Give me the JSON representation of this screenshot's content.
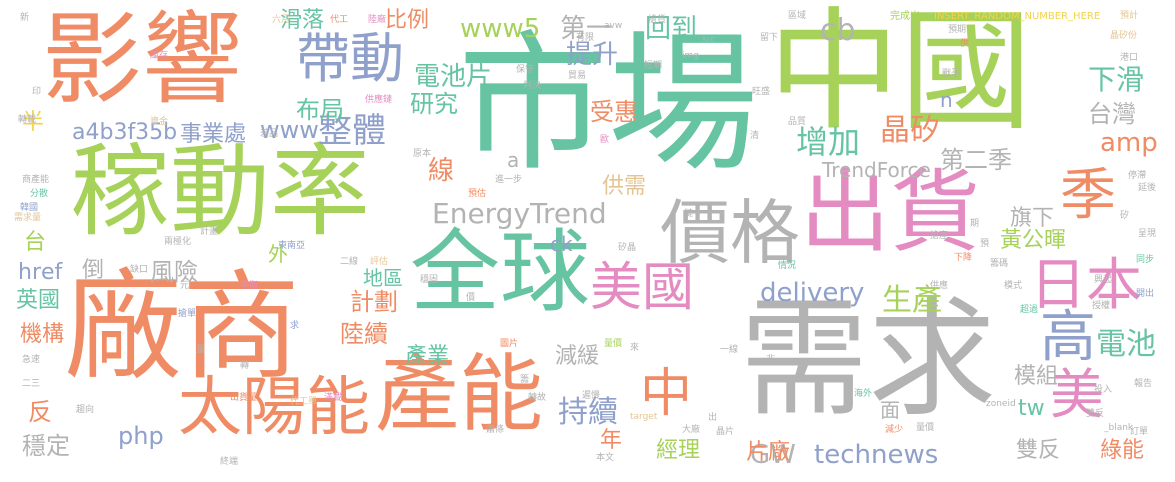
{
  "palette": {
    "orange": "#f08c65",
    "green": "#a6d25a",
    "teal": "#66c4a3",
    "gray": "#b3b3b3",
    "blue": "#8fa0cb",
    "pink": "#e48bc2",
    "yellow": "#f1d449",
    "tan": "#e3c593"
  },
  "words": [
    {
      "text": "市場",
      "color": "teal"
    },
    {
      "text": "中國",
      "color": "green"
    },
    {
      "text": "需求",
      "color": "gray"
    },
    {
      "text": "廠商",
      "color": "orange"
    },
    {
      "text": "影響",
      "color": "orange"
    },
    {
      "text": "稼動率",
      "color": "green"
    },
    {
      "text": "出貨",
      "color": "pink"
    },
    {
      "text": "全球",
      "color": "teal"
    },
    {
      "text": "產能",
      "color": "orange"
    },
    {
      "text": "價格",
      "color": "gray"
    },
    {
      "text": "太陽能",
      "color": "orange"
    },
    {
      "text": "帶動",
      "color": "blue"
    },
    {
      "text": "日本",
      "color": "pink"
    },
    {
      "text": "季",
      "color": "orange"
    },
    {
      "text": "美國",
      "color": "pink"
    },
    {
      "text": "高",
      "color": "blue"
    },
    {
      "text": "美",
      "color": "pink"
    },
    {
      "text": "中",
      "color": "orange"
    },
    {
      "text": "EnergyTrend",
      "color": "gray"
    },
    {
      "text": "delivery",
      "color": "blue"
    },
    {
      "text": "整體",
      "color": "blue"
    },
    {
      "text": "電池片",
      "color": "teal"
    },
    {
      "text": "持續",
      "color": "blue"
    },
    {
      "text": "technews",
      "color": "blue"
    },
    {
      "text": "生產",
      "color": "green"
    },
    {
      "text": "電池",
      "color": "teal"
    },
    {
      "text": "布局",
      "color": "teal"
    },
    {
      "text": "晶矽",
      "color": "orange"
    },
    {
      "text": "增加",
      "color": "teal"
    },
    {
      "text": "提升",
      "color": "blue"
    },
    {
      "text": "回到",
      "color": "teal"
    },
    {
      "text": "第一",
      "color": "gray"
    },
    {
      "text": "www5",
      "color": "green"
    },
    {
      "text": "cb",
      "color": "gray"
    },
    {
      "text": "比例",
      "color": "orange"
    },
    {
      "text": "滑落",
      "color": "teal"
    },
    {
      "text": "下滑",
      "color": "teal"
    },
    {
      "text": "台灣",
      "color": "gray"
    },
    {
      "text": "研究",
      "color": "teal"
    },
    {
      "text": "受惠",
      "color": "orange"
    },
    {
      "text": "amp",
      "color": "orange"
    },
    {
      "text": "第二季",
      "color": "gray"
    },
    {
      "text": "www",
      "color": "blue"
    },
    {
      "text": "a4b3f35b",
      "color": "blue"
    },
    {
      "text": "半",
      "color": "yellow"
    },
    {
      "text": "事業處",
      "color": "blue"
    },
    {
      "text": "線",
      "color": "orange"
    },
    {
      "text": "供需",
      "color": "tan"
    },
    {
      "text": "旗下",
      "color": "gray"
    },
    {
      "text": "黃公暉",
      "color": "green"
    },
    {
      "text": "TrendForce",
      "color": "gray"
    },
    {
      "text": "台",
      "color": "green"
    },
    {
      "text": "hrеf",
      "color": "blue"
    },
    {
      "text": "倒",
      "color": "gray"
    },
    {
      "text": "風險",
      "color": "gray"
    },
    {
      "text": "外",
      "color": "green"
    },
    {
      "text": "地區",
      "color": "teal"
    },
    {
      "text": "計劃",
      "color": "orange"
    },
    {
      "text": "陸續",
      "color": "orange"
    },
    {
      "text": "英國",
      "color": "teal"
    },
    {
      "text": "機構",
      "color": "orange"
    },
    {
      "text": "產業",
      "color": "teal"
    },
    {
      "text": "減緩",
      "color": "gray"
    },
    {
      "text": "模組",
      "color": "gray"
    },
    {
      "text": "tw",
      "color": "teal"
    },
    {
      "text": "反",
      "color": "orange"
    },
    {
      "text": "php",
      "color": "blue"
    },
    {
      "text": "穩定",
      "color": "gray"
    },
    {
      "text": "年",
      "color": "orange"
    },
    {
      "text": "GW",
      "color": "gray"
    },
    {
      "text": "片廠",
      "color": "orange"
    },
    {
      "text": "面",
      "color": "gray"
    },
    {
      "text": "雙反",
      "color": "gray"
    },
    {
      "text": "綠能",
      "color": "orange"
    },
    {
      "text": "經理",
      "color": "green"
    },
    {
      "text": "ck",
      "color": "blue"
    },
    {
      "text": "n",
      "color": "blue"
    },
    {
      "text": "a",
      "color": "gray"
    },
    {
      "text": "INSERT_RANDOM_NUMBER_HERE",
      "color": "yellow"
    },
    {
      "text": "完成出",
      "color": "green"
    },
    {
      "text": "預計",
      "color": "tan"
    },
    {
      "text": "晶矽份",
      "color": "tan"
    },
    {
      "text": "六月",
      "color": "tan"
    },
    {
      "text": "代工",
      "color": "orange"
    },
    {
      "text": "陸廠",
      "color": "pink"
    },
    {
      "text": "搶貨",
      "color": "gray"
    },
    {
      "text": "有限",
      "color": "gray"
    },
    {
      "text": "庫存",
      "color": "pink"
    },
    {
      "text": "新",
      "color": "gray"
    },
    {
      "text": "印",
      "color": "gray"
    },
    {
      "text": "轉載",
      "color": "gray"
    },
    {
      "text": "資金",
      "color": "tan"
    },
    {
      "text": "商產能",
      "color": "gray"
    },
    {
      "text": "分散",
      "color": "teal"
    },
    {
      "text": "韓國",
      "color": "blue"
    },
    {
      "text": "需求量",
      "color": "tan"
    },
    {
      "text": "兩極化",
      "color": "gray"
    },
    {
      "text": "東南亞",
      "color": "blue"
    },
    {
      "text": "二線",
      "color": "gray"
    },
    {
      "text": "評估",
      "color": "tan"
    },
    {
      "text": "進一步",
      "color": "gray"
    },
    {
      "text": "預估",
      "color": "orange"
    },
    {
      "text": "原本",
      "color": "gray"
    },
    {
      "text": "供應鏈",
      "color": "pink"
    },
    {
      "text": "圖片",
      "color": "orange"
    },
    {
      "text": "搶單",
      "color": "blue"
    },
    {
      "text": "平衡",
      "color": "pink"
    },
    {
      "text": "求",
      "color": "blue"
    },
    {
      "text": "情況",
      "color": "teal"
    },
    {
      "text": "下降",
      "color": "orange"
    },
    {
      "text": "一線",
      "color": "gray"
    },
    {
      "text": "同步",
      "color": "teal"
    },
    {
      "text": "開出",
      "color": "blue"
    },
    {
      "text": "模式",
      "color": "gray"
    },
    {
      "text": "超過",
      "color": "teal"
    },
    {
      "text": "報告",
      "color": "gray"
    },
    {
      "text": "投入",
      "color": "gray"
    },
    {
      "text": "海外",
      "color": "teal"
    },
    {
      "text": "減少",
      "color": "orange"
    },
    {
      "text": "target",
      "color": "tan"
    },
    {
      "text": "大廠",
      "color": "gray"
    },
    {
      "text": "晶片",
      "color": "gray"
    },
    {
      "text": "本文",
      "color": "gray"
    },
    {
      "text": "終端",
      "color": "gray"
    },
    {
      "text": "急速",
      "color": "gray"
    },
    {
      "text": "二三",
      "color": "gray"
    },
    {
      "text": "代工單",
      "color": "tan"
    },
    {
      "text": "趨向",
      "color": "gray"
    },
    {
      "text": "出貨量",
      "color": "orange"
    },
    {
      "text": "滿載",
      "color": "pink"
    },
    {
      "text": "轉故",
      "color": "gray"
    },
    {
      "text": "蕭條",
      "color": "gray"
    },
    {
      "text": "遲慢",
      "color": "gray"
    },
    {
      "text": "量價",
      "color": "green"
    },
    {
      "text": "雙反",
      "color": "gray"
    },
    {
      "text": "zoneid",
      "color": "gray"
    },
    {
      "text": "_blank",
      "color": "gray"
    },
    {
      "text": "訂單",
      "color": "gray"
    },
    {
      "text": "停滯",
      "color": "gray"
    },
    {
      "text": "延後",
      "color": "gray"
    },
    {
      "text": "矽",
      "color": "gray"
    },
    {
      "text": "呈現",
      "color": "gray"
    },
    {
      "text": "興起",
      "color": "gray"
    },
    {
      "text": "授權",
      "color": "gray"
    },
    {
      "text": "品質",
      "color": "gray"
    },
    {
      "text": "旺盛",
      "color": "gray"
    },
    {
      "text": "判決",
      "color": "gray"
    },
    {
      "text": "留下",
      "color": "gray"
    },
    {
      "text": "src",
      "color": "gray"
    },
    {
      "text": "img",
      "color": "gray"
    },
    {
      "text": "avw",
      "color": "gray"
    },
    {
      "text": "貿易",
      "color": "gray"
    },
    {
      "text": "短期",
      "color": "gray"
    },
    {
      "text": "保守",
      "color": "gray"
    },
    {
      "text": "計畫",
      "color": "gray"
    },
    {
      "text": "差品",
      "color": "gray"
    },
    {
      "text": "區域",
      "color": "gray"
    },
    {
      "text": "預期",
      "color": "gray"
    },
    {
      "text": "供",
      "color": "orange"
    },
    {
      "text": "戰爭",
      "color": "gray"
    },
    {
      "text": "港口",
      "color": "gray"
    },
    {
      "text": "矽晶",
      "color": "gray"
    },
    {
      "text": "籌碼",
      "color": "gray"
    },
    {
      "text": "供應",
      "color": "gray"
    },
    {
      "text": "出",
      "color": "gray"
    },
    {
      "text": "非",
      "color": "gray"
    },
    {
      "text": "歐",
      "color": "pink"
    },
    {
      "text": "清",
      "color": "gray"
    },
    {
      "text": "來",
      "color": "gray"
    },
    {
      "text": "元",
      "color": "gray"
    },
    {
      "text": "量",
      "color": "gray"
    },
    {
      "text": "缺口",
      "color": "gray"
    },
    {
      "text": "轉",
      "color": "gray"
    },
    {
      "text": "穩固",
      "color": "gray"
    },
    {
      "text": "價",
      "color": "gray"
    },
    {
      "text": "籌",
      "color": "gray"
    },
    {
      "text": "鏈",
      "color": "gray"
    },
    {
      "text": "量價",
      "color": "gray"
    },
    {
      "text": "搶產",
      "color": "gray"
    },
    {
      "text": "期",
      "color": "gray"
    },
    {
      "text": "預",
      "color": "gray"
    },
    {
      "text": "利",
      "color": "gray"
    },
    {
      "text": "率",
      "color": "gray"
    },
    {
      "text": "減",
      "color": "gray"
    }
  ]
}
